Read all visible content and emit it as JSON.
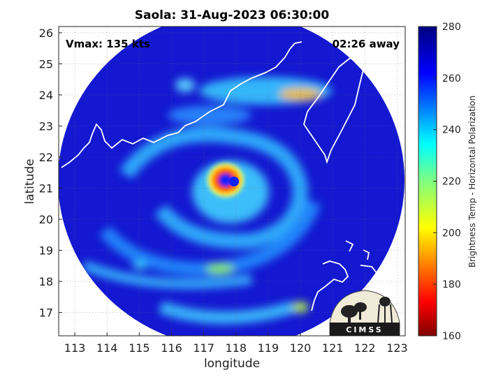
{
  "chart_data": {
    "type": "heatmap",
    "title": "Saola: 31-Aug-2023 06:30:00",
    "xlabel": "longitude",
    "ylabel": "latitude",
    "xlim": [
      112.5,
      123.25
    ],
    "ylim": [
      16.25,
      26.2
    ],
    "xticks": [
      113,
      114,
      115,
      116,
      117,
      118,
      119,
      120,
      121,
      122,
      123
    ],
    "yticks": [
      17,
      18,
      19,
      20,
      21,
      22,
      23,
      24,
      25,
      26
    ],
    "grid": true,
    "annotations": {
      "vmax": "Vmax: 135 kts",
      "age": "02:26 away"
    },
    "storm_center": {
      "lon": 117.85,
      "lat": 21.2
    },
    "colorbar": {
      "label": "Brightness Temp - Horizontal Polarization",
      "range": [
        160,
        280
      ],
      "ticks": [
        160,
        180,
        200,
        220,
        240,
        260,
        280
      ],
      "colormap": "jet"
    },
    "logo_text": "CIMSS"
  }
}
